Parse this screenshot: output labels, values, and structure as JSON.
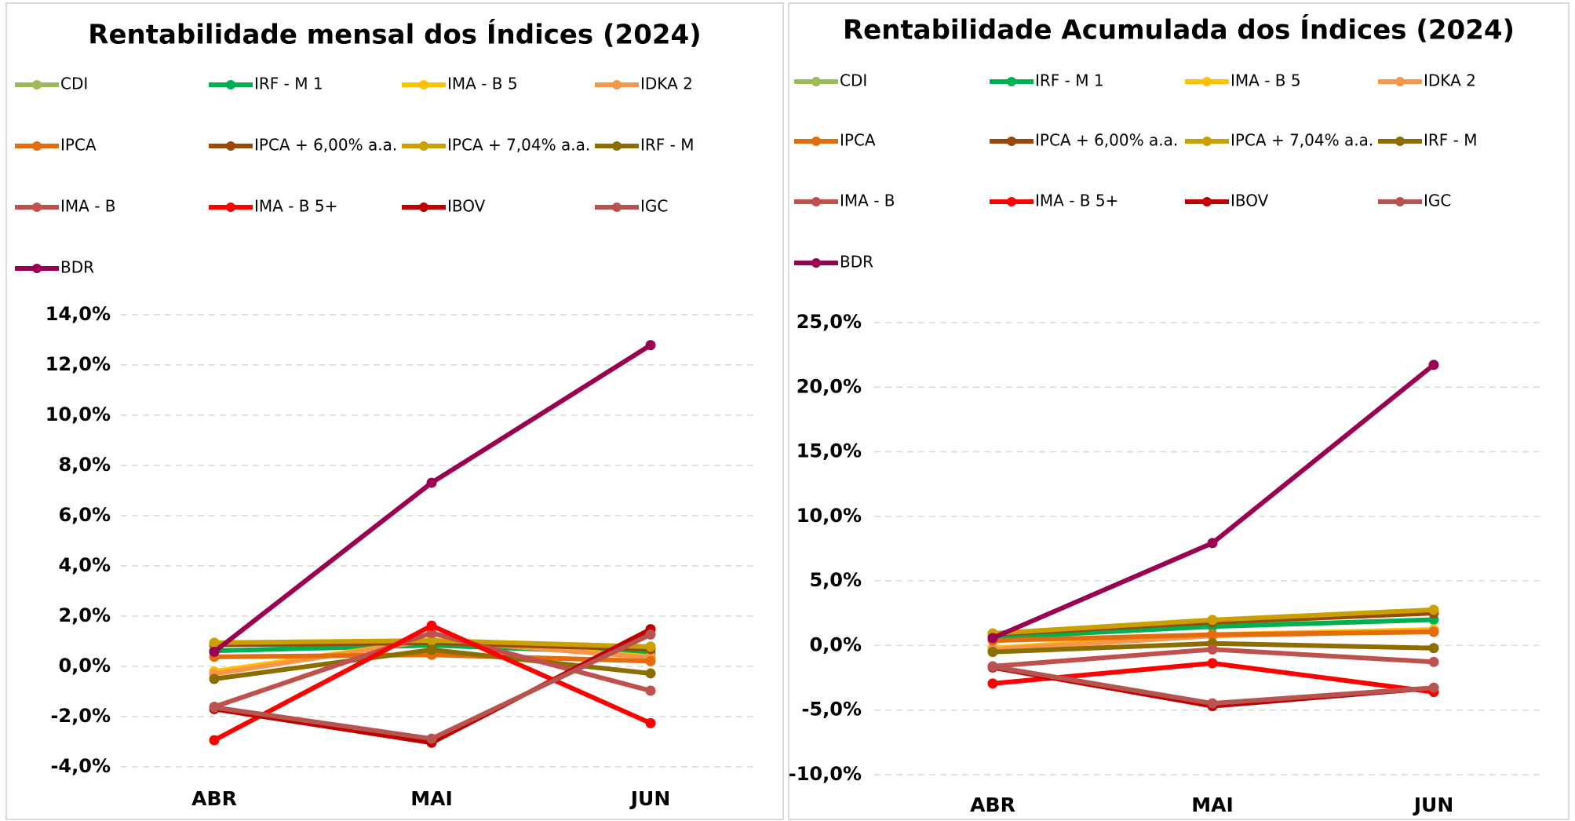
{
  "chart_data": [
    {
      "type": "line",
      "title": "Rentabilidade mensal dos Índices (2024)",
      "categories": [
        "ABR",
        "MAI",
        "JUN"
      ],
      "ylim": [
        -4,
        14
      ],
      "yticks": [
        {
          "value": -4,
          "label": "-4,0%"
        },
        {
          "value": -2,
          "label": "-2,0%"
        },
        {
          "value": 0,
          "label": "0,0%"
        },
        {
          "value": 2,
          "label": "2,0%"
        },
        {
          "value": 4,
          "label": "4,0%"
        },
        {
          "value": 6,
          "label": "6,0%"
        },
        {
          "value": 8,
          "label": "8,0%"
        },
        {
          "value": 10,
          "label": "10,0%"
        },
        {
          "value": 12,
          "label": "12,0%"
        },
        {
          "value": 14,
          "label": "14,0%"
        }
      ],
      "grid": true,
      "series": [
        {
          "name": "CDI",
          "color": "#9bbb59",
          "values": [
            0.89,
            0.83,
            0.79
          ]
        },
        {
          "name": "IRF - M 1",
          "color": "#00b050",
          "values": [
            0.62,
            0.84,
            0.52
          ]
        },
        {
          "name": "IMA - B 5",
          "color": "#ffc000",
          "values": [
            -0.2,
            1.05,
            0.39
          ]
        },
        {
          "name": "IDKA 2",
          "color": "#f79646",
          "values": [
            -0.3,
            1.05,
            0.35
          ]
        },
        {
          "name": "IPCA",
          "color": "#e46c0a",
          "values": [
            0.38,
            0.46,
            0.21
          ]
        },
        {
          "name": "IPCA + 6,00% a.a.",
          "color": "#984807",
          "values": [
            0.86,
            0.94,
            0.69
          ]
        },
        {
          "name": "IPCA + 7,04% a.a.",
          "color": "#c9a000",
          "values": [
            0.94,
            1.03,
            0.78
          ]
        },
        {
          "name": "IRF - M",
          "color": "#8c6d00",
          "values": [
            -0.5,
            0.66,
            -0.28
          ]
        },
        {
          "name": "IMA - B",
          "color": "#c0504d",
          "values": [
            -1.61,
            1.33,
            -0.97
          ]
        },
        {
          "name": "IMA - B 5+",
          "color": "#ff0000",
          "values": [
            -2.94,
            1.62,
            -2.26
          ]
        },
        {
          "name": "IBOV",
          "color": "#c00000",
          "values": [
            -1.7,
            -3.04,
            1.48
          ]
        },
        {
          "name": "IGC",
          "color": "#b85450",
          "values": [
            -1.63,
            -2.88,
            1.27
          ]
        },
        {
          "name": "BDR",
          "color": "#990050",
          "values": [
            0.58,
            7.31,
            12.79
          ]
        }
      ]
    },
    {
      "type": "line",
      "title": "Rentabilidade Acumulada dos Índices (2024)",
      "categories": [
        "ABR",
        "MAI",
        "JUN"
      ],
      "ylim": [
        -10,
        25
      ],
      "yticks": [
        {
          "value": -10,
          "label": "-10,0%"
        },
        {
          "value": -5,
          "label": "-5,0%"
        },
        {
          "value": 0,
          "label": "0,0%"
        },
        {
          "value": 5,
          "label": "5,0%"
        },
        {
          "value": 10,
          "label": "10,0%"
        },
        {
          "value": 15,
          "label": "15,0%"
        },
        {
          "value": 20,
          "label": "20,0%"
        },
        {
          "value": 25,
          "label": "25,0%"
        }
      ],
      "grid": true,
      "series": [
        {
          "name": "CDI",
          "color": "#9bbb59",
          "values": [
            0.89,
            1.73,
            2.54
          ]
        },
        {
          "name": "IRF - M 1",
          "color": "#00b050",
          "values": [
            0.62,
            1.47,
            2.0
          ]
        },
        {
          "name": "IMA - B 5",
          "color": "#ffc000",
          "values": [
            -0.2,
            0.85,
            1.24
          ]
        },
        {
          "name": "IDKA 2",
          "color": "#f79646",
          "values": [
            -0.3,
            0.75,
            1.1
          ]
        },
        {
          "name": "IPCA",
          "color": "#e46c0a",
          "values": [
            0.38,
            0.84,
            1.05
          ]
        },
        {
          "name": "IPCA + 6,00% a.a.",
          "color": "#984807",
          "values": [
            0.86,
            1.81,
            2.51
          ]
        },
        {
          "name": "IPCA + 7,04% a.a.",
          "color": "#c9a000",
          "values": [
            0.94,
            1.98,
            2.77
          ]
        },
        {
          "name": "IRF - M",
          "color": "#8c6d00",
          "values": [
            -0.5,
            0.16,
            -0.2
          ]
        },
        {
          "name": "IMA - B",
          "color": "#c0504d",
          "values": [
            -1.61,
            -0.3,
            -1.27
          ]
        },
        {
          "name": "IMA - B 5+",
          "color": "#ff0000",
          "values": [
            -2.94,
            -1.37,
            -3.6
          ]
        },
        {
          "name": "IBOV",
          "color": "#c00000",
          "values": [
            -1.7,
            -4.69,
            -3.28
          ]
        },
        {
          "name": "IGC",
          "color": "#b85450",
          "values": [
            -1.63,
            -4.48,
            -3.27
          ]
        },
        {
          "name": "BDR",
          "color": "#990050",
          "values": [
            0.58,
            7.93,
            21.73
          ]
        }
      ]
    }
  ]
}
